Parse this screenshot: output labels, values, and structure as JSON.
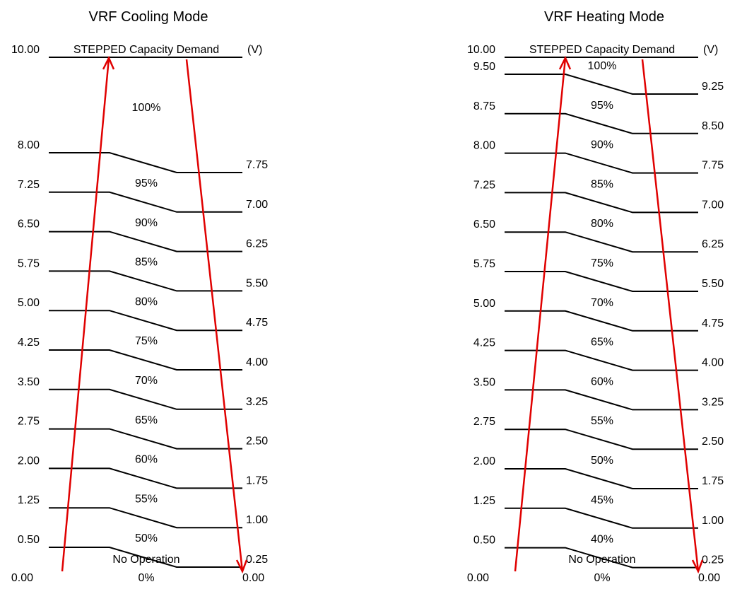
{
  "diagrams": [
    {
      "title": "VRF Cooling Mode",
      "header": "STEPPED Capacity Demand",
      "unit": "(V)",
      "top_voltage": "10.00",
      "bottom_voltage_left": "0.00",
      "bottom_voltage_right": "0.00",
      "no_operation_label": "No Operation",
      "bottom_percent": "0%",
      "steps": [
        {
          "up": "8.00",
          "down": "7.75"
        },
        {
          "up": "7.25",
          "down": "7.00"
        },
        {
          "up": "6.50",
          "down": "6.25"
        },
        {
          "up": "5.75",
          "down": "5.50"
        },
        {
          "up": "5.00",
          "down": "4.75"
        },
        {
          "up": "4.25",
          "down": "4.00"
        },
        {
          "up": "3.50",
          "down": "3.25"
        },
        {
          "up": "2.75",
          "down": "2.50"
        },
        {
          "up": "2.00",
          "down": "1.75"
        },
        {
          "up": "1.25",
          "down": "1.00"
        },
        {
          "up": "0.50",
          "down": "0.25"
        }
      ],
      "percents": [
        "100%",
        "95%",
        "90%",
        "85%",
        "80%",
        "75%",
        "70%",
        "65%",
        "60%",
        "55%",
        "50%"
      ]
    },
    {
      "title": "VRF Heating Mode",
      "header": "STEPPED Capacity Demand",
      "unit": "(V)",
      "top_voltage": "10.00",
      "bottom_voltage_left": "0.00",
      "bottom_voltage_right": "0.00",
      "no_operation_label": "No Operation",
      "bottom_percent": "0%",
      "steps": [
        {
          "up": "9.50",
          "down": "9.25"
        },
        {
          "up": "8.75",
          "down": "8.50"
        },
        {
          "up": "8.00",
          "down": "7.75"
        },
        {
          "up": "7.25",
          "down": "7.00"
        },
        {
          "up": "6.50",
          "down": "6.25"
        },
        {
          "up": "5.75",
          "down": "5.50"
        },
        {
          "up": "5.00",
          "down": "4.75"
        },
        {
          "up": "4.25",
          "down": "4.00"
        },
        {
          "up": "3.50",
          "down": "3.25"
        },
        {
          "up": "2.75",
          "down": "2.50"
        },
        {
          "up": "2.00",
          "down": "1.75"
        },
        {
          "up": "1.25",
          "down": "1.00"
        },
        {
          "up": "0.50",
          "down": "0.25"
        }
      ],
      "percents": [
        "100%",
        "95%",
        "90%",
        "85%",
        "80%",
        "75%",
        "70%",
        "65%",
        "60%",
        "55%",
        "50%",
        "45%",
        "40%"
      ]
    }
  ],
  "colors": {
    "lines": "#000000",
    "arrows": "#e00000"
  }
}
